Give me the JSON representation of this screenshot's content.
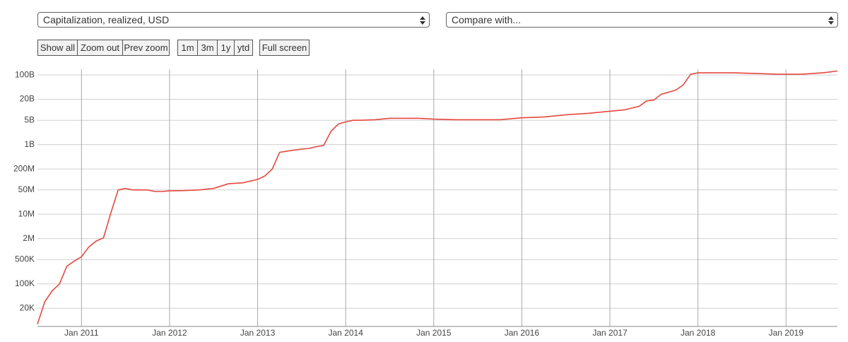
{
  "controls": {
    "metric_select": "Capitalization, realized, USD",
    "compare_select": "Compare with...",
    "zoom_buttons": [
      "Show all",
      "Zoom out",
      "Prev zoom"
    ],
    "range_buttons": [
      "1m",
      "3m",
      "1y",
      "ytd"
    ],
    "fullscreen_button": "Full screen"
  },
  "chart_data": {
    "type": "line",
    "log_scale": true,
    "grid": true,
    "color": "#e5483f",
    "x": [
      "2010-07",
      "2010-08",
      "2010-09",
      "2010-10",
      "2010-11",
      "2010-12",
      "2011-01",
      "2011-02",
      "2011-03",
      "2011-04",
      "2011-05",
      "2011-06",
      "2011-07",
      "2011-08",
      "2011-09",
      "2011-10",
      "2011-11",
      "2011-12",
      "2012-01",
      "2012-03",
      "2012-05",
      "2012-07",
      "2012-09",
      "2012-11",
      "2013-01",
      "2013-02",
      "2013-03",
      "2013-04",
      "2013-05",
      "2013-06",
      "2013-07",
      "2013-08",
      "2013-09",
      "2013-10",
      "2013-11",
      "2013-12",
      "2014-01",
      "2014-02",
      "2014-03",
      "2014-05",
      "2014-07",
      "2014-09",
      "2014-11",
      "2015-01",
      "2015-04",
      "2015-07",
      "2015-10",
      "2016-01",
      "2016-04",
      "2016-07",
      "2016-10",
      "2017-01",
      "2017-03",
      "2017-05",
      "2017-06",
      "2017-07",
      "2017-08",
      "2017-09",
      "2017-10",
      "2017-11",
      "2017-12",
      "2018-01",
      "2018-03",
      "2018-06",
      "2018-09",
      "2018-12",
      "2019-03",
      "2019-06",
      "2019-08"
    ],
    "values": [
      7000,
      31000,
      63000,
      100000,
      320000,
      450000,
      600000,
      1150000,
      1700000,
      2100000,
      11000000,
      50000000,
      55000000,
      50000000,
      50000000,
      50000000,
      45000000,
      45000000,
      47000000,
      48000000,
      50000000,
      55000000,
      75000000,
      80000000,
      100000000,
      126000000,
      200000000,
      600000000,
      650000000,
      700000000,
      740000000,
      780000000,
      870000000,
      950000000,
      2400000000,
      3900000000,
      4500000000,
      5000000000,
      5000000000,
      5200000000,
      5700000000,
      5700000000,
      5700000000,
      5400000000,
      5200000000,
      5200000000,
      5200000000,
      5900000000,
      6200000000,
      7200000000,
      7900000000,
      9100000000,
      10000000000,
      12600000000,
      18000000000,
      19000000000,
      28000000000,
      32000000000,
      37000000000,
      52000000000,
      105000000000,
      115000000000,
      115000000000,
      115000000000,
      110000000000,
      105000000000,
      105000000000,
      115000000000,
      130000000000
    ],
    "xlim": [
      "2010-07",
      "2019-08"
    ],
    "ylim": [
      6000,
      146000000000
    ],
    "xticks": [
      {
        "value": "2011-01",
        "label": "Jan 2011"
      },
      {
        "value": "2012-01",
        "label": "Jan 2012"
      },
      {
        "value": "2013-01",
        "label": "Jan 2013"
      },
      {
        "value": "2014-01",
        "label": "Jan 2014"
      },
      {
        "value": "2015-01",
        "label": "Jan 2015"
      },
      {
        "value": "2016-01",
        "label": "Jan 2016"
      },
      {
        "value": "2017-01",
        "label": "Jan 2017"
      },
      {
        "value": "2018-01",
        "label": "Jan 2018"
      },
      {
        "value": "2019-01",
        "label": "Jan 2019"
      }
    ],
    "yticks": [
      {
        "value": 20000,
        "label": "20K"
      },
      {
        "value": 100000,
        "label": "100K"
      },
      {
        "value": 500000,
        "label": "500K"
      },
      {
        "value": 2000000,
        "label": "2M"
      },
      {
        "value": 10000000,
        "label": "10M"
      },
      {
        "value": 50000000,
        "label": "50M"
      },
      {
        "value": 200000000,
        "label": "200M"
      },
      {
        "value": 1000000000,
        "label": "1B"
      },
      {
        "value": 5000000000,
        "label": "5B"
      },
      {
        "value": 20000000000,
        "label": "20B"
      },
      {
        "value": 100000000000,
        "label": "100B"
      }
    ]
  }
}
